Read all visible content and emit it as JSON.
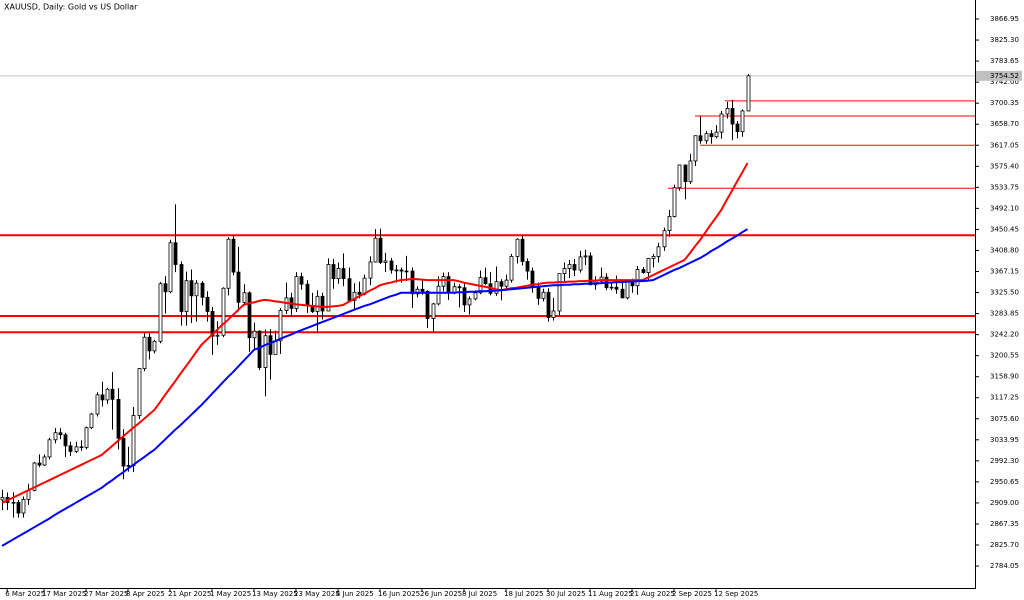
{
  "chart_data": {
    "type": "candlestick",
    "title": "XAUUSD, Daily:  Gold vs US Dollar",
    "categories": [
      null,
      "6 Mar 2025",
      null,
      null,
      null,
      null,
      null,
      null,
      "17 Mar 2025",
      null,
      null,
      null,
      null,
      null,
      null,
      null,
      "27 Mar 2025",
      null,
      null,
      null,
      null,
      null,
      null,
      null,
      "8 Apr 2025",
      null,
      null,
      null,
      null,
      null,
      null,
      null,
      "21 Apr 2025",
      null,
      null,
      null,
      null,
      null,
      null,
      null,
      "1 May 2025",
      null,
      null,
      null,
      null,
      null,
      null,
      null,
      "13 May 2025",
      null,
      null,
      null,
      null,
      null,
      null,
      null,
      "23 May 2025",
      null,
      null,
      null,
      null,
      null,
      null,
      null,
      "4 Jun 2025",
      null,
      null,
      null,
      null,
      null,
      null,
      null,
      "16 Jun 2025",
      null,
      null,
      null,
      null,
      null,
      null,
      null,
      "26 Jun 2025",
      null,
      null,
      null,
      null,
      null,
      null,
      null,
      "8 Jul 2025",
      null,
      null,
      null,
      null,
      null,
      null,
      null,
      "18 Jul 2025",
      null,
      null,
      null,
      null,
      null,
      null,
      null,
      "30 Jul 2025",
      null,
      null,
      null,
      null,
      null,
      null,
      null,
      "11 Aug 2025",
      null,
      null,
      null,
      null,
      null,
      null,
      null,
      "21 Aug 2025",
      null,
      null,
      null,
      null,
      null,
      null,
      null,
      "2 Sep 2025",
      null,
      null,
      null,
      null,
      null,
      null,
      null,
      "12 Sep 2025",
      null,
      null,
      null,
      null,
      null,
      null
    ],
    "open": [
      2915,
      2920,
      2910,
      2910,
      2889,
      2916,
      2934,
      2988,
      2984,
      3000,
      3034,
      3048,
      3044,
      3022,
      3011,
      3020,
      3019,
      3058,
      3085,
      3123,
      3113,
      3134,
      3114,
      3037,
      2982,
      2983,
      3082,
      3175,
      3237,
      3210,
      3229,
      3343,
      3327,
      3424,
      3381,
      3288,
      3349,
      3319,
      3344,
      3316,
      3288,
      3239,
      3241,
      3334,
      3431,
      3366,
      3306,
      3325,
      3236,
      3249,
      3177,
      3240,
      3203,
      3230,
      3290,
      3315,
      3294,
      3357,
      3342,
      3300,
      3288,
      3318,
      3289,
      3381,
      3353,
      3373,
      3353,
      3310,
      3326,
      3322,
      3354,
      3386,
      3433,
      3385,
      3388,
      3370,
      3370,
      3368,
      3368,
      3323,
      3332,
      3328,
      3274,
      3303,
      3338,
      3357,
      3326,
      3337,
      3335,
      3301,
      3313,
      3325,
      3355,
      3343,
      3324,
      3347,
      3338,
      3350,
      3397,
      3431,
      3387,
      3368,
      3337,
      3314,
      3326,
      3276,
      3289,
      3363,
      3373,
      3381,
      3370,
      3396,
      3398,
      3341,
      3348,
      3356,
      3335,
      3336,
      3332,
      3315,
      3347,
      3339,
      3371,
      3365,
      3393,
      3397,
      3416,
      3448,
      3476,
      3533,
      3578,
      3545,
      3586,
      3636,
      3626,
      3640,
      3634,
      3643,
      3679,
      3690,
      3659,
      3644,
      3685
    ],
    "high": [
      2935,
      2930,
      2930,
      2915,
      2922,
      2947,
      2990,
      3005,
      3005,
      3038,
      3057,
      3057,
      3048,
      3030,
      3030,
      3033,
      3060,
      3087,
      3128,
      3149,
      3137,
      3168,
      3136,
      3055,
      3020,
      3099,
      3176,
      3245,
      3245,
      3232,
      3346,
      3358,
      3430,
      3500,
      3387,
      3367,
      3371,
      3350,
      3348,
      3328,
      3297,
      3269,
      3336,
      3435,
      3438,
      3416,
      3342,
      3328,
      3266,
      3251,
      3252,
      3253,
      3250,
      3295,
      3345,
      3325,
      3366,
      3365,
      3350,
      3325,
      3330,
      3325,
      3393,
      3392,
      3385,
      3403,
      3375,
      3344,
      3347,
      3361,
      3397,
      3451,
      3452,
      3404,
      3394,
      3380,
      3375,
      3398,
      3375,
      3338,
      3350,
      3330,
      3305,
      3358,
      3365,
      3366,
      3345,
      3342,
      3346,
      3318,
      3330,
      3369,
      3375,
      3366,
      3377,
      3352,
      3361,
      3402,
      3433,
      3439,
      3393,
      3375,
      3345,
      3333,
      3334,
      3315,
      3363,
      3385,
      3390,
      3392,
      3408,
      3410,
      3405,
      3358,
      3375,
      3364,
      3345,
      3359,
      3345,
      3350,
      3353,
      3378,
      3376,
      3394,
      3402,
      3424,
      3454,
      3489,
      3539,
      3579,
      3578,
      3600,
      3636,
      3674,
      3645,
      3647,
      3657,
      3685,
      3703,
      3707,
      3665,
      3688,
      3758
    ],
    "low": [
      2895,
      2895,
      2880,
      2880,
      2880,
      2905,
      2932,
      2980,
      2982,
      2995,
      3027,
      3035,
      3000,
      3002,
      3008,
      3012,
      3015,
      3055,
      3080,
      3100,
      3105,
      3054,
      3015,
      2956,
      2971,
      2970,
      3075,
      3170,
      3193,
      3205,
      3225,
      3284,
      3324,
      3366,
      3260,
      3260,
      3265,
      3268,
      3300,
      3268,
      3202,
      3222,
      3237,
      3320,
      3360,
      3288,
      3300,
      3208,
      3212,
      3172,
      3120,
      3153,
      3205,
      3204,
      3283,
      3277,
      3287,
      3331,
      3285,
      3285,
      3245,
      3272,
      3289,
      3333,
      3343,
      3338,
      3306,
      3293,
      3314,
      3320,
      3340,
      3385,
      3382,
      3366,
      3363,
      3345,
      3345,
      3348,
      3295,
      3316,
      3321,
      3255,
      3247,
      3300,
      3328,
      3311,
      3322,
      3296,
      3287,
      3282,
      3310,
      3322,
      3341,
      3320,
      3319,
      3310,
      3332,
      3345,
      3383,
      3379,
      3351,
      3325,
      3301,
      3308,
      3268,
      3270,
      3280,
      3345,
      3354,
      3358,
      3365,
      3380,
      3340,
      3331,
      3345,
      3330,
      3330,
      3323,
      3314,
      3312,
      3325,
      3321,
      3363,
      3350,
      3375,
      3385,
      3408,
      3436,
      3474,
      3527,
      3510,
      3540,
      3576,
      3620,
      3620,
      3620,
      3631,
      3630,
      3670,
      3627,
      3631,
      3634,
      3684
    ],
    "close": [
      2920,
      2910,
      2910,
      2889,
      2916,
      2934,
      2988,
      2984,
      3000,
      3034,
      3048,
      3044,
      3022,
      3011,
      3020,
      3019,
      3058,
      3085,
      3123,
      3113,
      3134,
      3114,
      3037,
      2982,
      2983,
      3082,
      3175,
      3237,
      3210,
      3229,
      3343,
      3327,
      3424,
      3381,
      3288,
      3349,
      3319,
      3344,
      3316,
      3288,
      3239,
      3241,
      3334,
      3431,
      3366,
      3306,
      3325,
      3236,
      3249,
      3177,
      3240,
      3203,
      3230,
      3290,
      3315,
      3294,
      3357,
      3342,
      3300,
      3288,
      3318,
      3289,
      3381,
      3353,
      3373,
      3353,
      3310,
      3326,
      3322,
      3354,
      3386,
      3433,
      3385,
      3388,
      3370,
      3370,
      3368,
      3368,
      3323,
      3332,
      3328,
      3274,
      3303,
      3338,
      3357,
      3326,
      3337,
      3335,
      3301,
      3313,
      3325,
      3355,
      3343,
      3324,
      3347,
      3338,
      3350,
      3397,
      3431,
      3387,
      3368,
      3337,
      3314,
      3326,
      3276,
      3289,
      3363,
      3373,
      3381,
      3370,
      3396,
      3398,
      3341,
      3348,
      3356,
      3335,
      3336,
      3332,
      3315,
      3347,
      3339,
      3371,
      3365,
      3393,
      3397,
      3416,
      3448,
      3476,
      3533,
      3578,
      3545,
      3586,
      3636,
      3626,
      3640,
      3634,
      3643,
      3679,
      3690,
      3659,
      3644,
      3685,
      3754.52
    ],
    "lines": [
      {
        "color": "#ff0000",
        "values": [
          2909,
          2914,
          2919,
          2924,
          2929,
          2934,
          2939,
          2944,
          2949,
          2954,
          2959,
          2964,
          2969,
          2974,
          2979,
          2984,
          2989,
          2994,
          2999,
          3004,
          3013,
          3022,
          3031,
          3040,
          3049,
          3058,
          3066,
          3075,
          3084,
          3093,
          3107,
          3122,
          3136,
          3150,
          3165,
          3179,
          3193,
          3208,
          3222,
          3232,
          3242,
          3252,
          3262,
          3271,
          3281,
          3291,
          3301,
          3304,
          3306,
          3309,
          3311,
          3310,
          3308,
          3307,
          3305,
          3304,
          3302,
          3301,
          3300,
          3299,
          3298,
          3297,
          3297,
          3298,
          3299,
          3301,
          3307,
          3312,
          3318,
          3323,
          3329,
          3334,
          3340,
          3343,
          3345,
          3348,
          3350,
          3351,
          3352,
          3352,
          3351,
          3350,
          3350,
          3350,
          3350,
          3350,
          3350,
          3348,
          3345,
          3343,
          3341,
          3339,
          3337,
          3335,
          3332,
          3330,
          3332,
          3334,
          3335,
          3337,
          3339,
          3341,
          3342,
          3344,
          3345,
          3345,
          3346,
          3346,
          3347,
          3347,
          3348,
          3348,
          3349,
          3349,
          3350,
          3350,
          3350,
          3350,
          3350,
          3350,
          3350,
          3350,
          3350,
          3355,
          3360,
          3365,
          3370,
          3375,
          3380,
          3385,
          3390,
          3403,
          3417,
          3430,
          3445,
          3460,
          3474,
          3489,
          3508,
          3526,
          3545,
          3563,
          3582
        ]
      },
      {
        "color": "#0000ff",
        "values": [
          2824,
          2830,
          2836,
          2842,
          2848,
          2854,
          2860,
          2866,
          2872,
          2878,
          2885,
          2891,
          2897,
          2903,
          2909,
          2915,
          2921,
          2927,
          2933,
          2939,
          2947,
          2954,
          2962,
          2969,
          2977,
          2984,
          2992,
          2999,
          3007,
          3014,
          3024,
          3034,
          3044,
          3054,
          3063,
          3073,
          3083,
          3093,
          3103,
          3114,
          3125,
          3136,
          3147,
          3158,
          3168,
          3179,
          3190,
          3201,
          3212,
          3216,
          3221,
          3225,
          3229,
          3234,
          3238,
          3242,
          3247,
          3251,
          3255,
          3259,
          3263,
          3267,
          3271,
          3275,
          3279,
          3283,
          3287,
          3291,
          3295,
          3299,
          3302,
          3306,
          3310,
          3314,
          3318,
          3321,
          3325,
          3325,
          3325,
          3325,
          3325,
          3325,
          3325,
          3325,
          3325,
          3325,
          3325,
          3326,
          3326,
          3327,
          3327,
          3328,
          3328,
          3329,
          3329,
          3330,
          3331,
          3332,
          3333,
          3334,
          3335,
          3336,
          3337,
          3338,
          3339,
          3340,
          3340,
          3341,
          3341,
          3342,
          3342,
          3343,
          3343,
          3344,
          3344,
          3345,
          3345,
          3346,
          3346,
          3347,
          3347,
          3348,
          3348,
          3349,
          3350,
          3355,
          3360,
          3365,
          3370,
          3374,
          3379,
          3384,
          3389,
          3394,
          3400,
          3407,
          3413,
          3419,
          3426,
          3432,
          3438,
          3445,
          3451
        ]
      }
    ],
    "levels": [
      {
        "value": 3705,
        "color": "#ff0000"
      },
      {
        "value": 3675,
        "color": "#ff0000"
      },
      {
        "value": 3617,
        "color": "#ff0000"
      },
      {
        "value": 3532,
        "color": "#ff0000"
      },
      {
        "value": 3439,
        "color": "#ff0000"
      },
      {
        "value": 3279,
        "color": "#ff0000"
      },
      {
        "value": 3247,
        "color": "#ff0000"
      }
    ],
    "ylim": [
      2740.6,
      3904.6
    ],
    "yticks": [
      2784.05,
      {
        "value": 2825.7,
        "label": "2825.70"
      },
      2867.35,
      {
        "value": 2909,
        "label": "2909.00"
      },
      2950.65,
      {
        "value": 2992.3,
        "label": "2992.30"
      },
      3033.95,
      {
        "value": 3075.6,
        "label": "3075.60"
      },
      3117.25,
      {
        "value": 3158.9,
        "label": "3158.90"
      },
      3200.55,
      {
        "value": 3242.2,
        "label": "3242.20"
      },
      3283.85,
      {
        "value": 3325.5,
        "label": "3325.50"
      },
      3367.15,
      {
        "value": 3408.8,
        "label": "3408.80"
      },
      3450.45,
      {
        "value": 3492.1,
        "label": "3492.10"
      },
      3533.75,
      {
        "value": 3575.4,
        "label": "3575.40"
      },
      3617.05,
      {
        "value": 3658.7,
        "label": "3658.70"
      },
      3700.35,
      {
        "value": 3742,
        "label": "3742.00"
      },
      3783.65,
      {
        "value": 3825.3,
        "label": "3825.30"
      },
      3866.95
    ]
  }
}
